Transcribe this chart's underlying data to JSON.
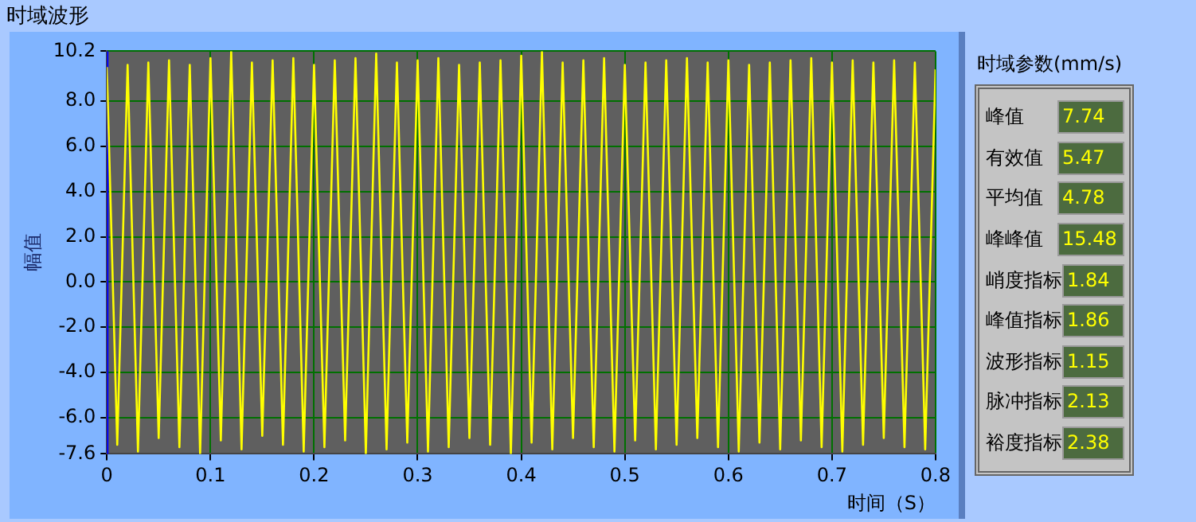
{
  "chart_data": [
    {
      "type": "line",
      "title": "时域波形",
      "xlabel": "时间（S）",
      "ylabel": "幅值",
      "x": [
        0,
        0.01,
        0.02,
        0.03,
        0.04,
        0.05,
        0.06,
        0.07,
        0.08,
        0.09,
        0.1,
        0.11,
        0.12,
        0.13,
        0.14,
        0.15,
        0.16,
        0.17,
        0.18,
        0.19,
        0.2,
        0.21,
        0.22,
        0.23,
        0.24,
        0.25,
        0.26,
        0.27,
        0.28,
        0.29,
        0.3,
        0.31,
        0.32,
        0.33,
        0.34,
        0.35,
        0.36,
        0.37,
        0.38,
        0.39,
        0.4,
        0.41,
        0.42,
        0.43,
        0.44,
        0.45,
        0.46,
        0.47,
        0.48,
        0.49,
        0.5,
        0.51,
        0.52,
        0.53,
        0.54,
        0.55,
        0.56,
        0.57,
        0.58,
        0.59,
        0.6,
        0.61,
        0.62,
        0.63,
        0.64,
        0.65,
        0.66,
        0.67,
        0.68,
        0.69,
        0.7,
        0.71,
        0.72,
        0.73,
        0.74,
        0.75,
        0.76,
        0.77,
        0.78,
        0.79,
        0.8
      ],
      "series": [
        {
          "color": "#ffff00",
          "values": [
            9.5,
            -7.2,
            9.6,
            -7.5,
            9.7,
            -6.9,
            9.8,
            -7.3,
            9.6,
            -7.6,
            9.9,
            -7.0,
            10.2,
            -7.4,
            9.7,
            -6.8,
            9.8,
            -7.2,
            9.9,
            -7.5,
            9.6,
            -7.3,
            9.8,
            -7.0,
            9.9,
            -7.6,
            10.1,
            -7.4,
            9.7,
            -7.1,
            9.8,
            -7.5,
            9.9,
            -7.3,
            9.6,
            -6.9,
            9.7,
            -7.2,
            9.8,
            -7.6,
            10.0,
            -7.1,
            10.2,
            -7.4,
            9.7,
            -6.9,
            9.8,
            -7.3,
            9.9,
            -7.5,
            9.6,
            -7.0,
            9.7,
            -7.4,
            9.8,
            -7.2,
            9.9,
            -6.9,
            9.7,
            -7.3,
            9.8,
            -7.5,
            9.6,
            -7.1,
            9.7,
            -7.4,
            9.8,
            -7.0,
            9.9,
            -7.3,
            9.7,
            -7.5,
            9.8,
            -7.2,
            9.7,
            -6.9,
            9.8,
            -7.3,
            9.7,
            -7.4,
            9.4
          ]
        }
      ],
      "xlim": [
        0,
        0.8
      ],
      "xticks": [
        0,
        0.1,
        0.2,
        0.3,
        0.4,
        0.5,
        0.6,
        0.7,
        0.8
      ],
      "ylim": [
        -7.6,
        10.2
      ],
      "yticks": [
        {
          "value": -7.6,
          "label": "-7.6"
        },
        {
          "value": -6,
          "label": "-6.0"
        },
        {
          "value": -4,
          "label": "-4.0"
        },
        {
          "value": -2,
          "label": "-2.0"
        },
        {
          "value": 0,
          "label": "0.0"
        },
        {
          "value": 2,
          "label": "2.0"
        },
        {
          "value": 4,
          "label": "4.0"
        },
        {
          "value": 6,
          "label": "6.0"
        },
        {
          "value": 8,
          "label": "8.0"
        },
        {
          "value": 10.2,
          "label": "10.2"
        }
      ],
      "grid": true,
      "ref_lines": [
        {
          "axis": "x",
          "value": 0,
          "color": "#0000ff"
        }
      ]
    },
    {
      "type": "other",
      "title": "时域参数(mm/s)",
      "categories": [
        "峰值",
        "有效值",
        "平均值",
        "峰峰值",
        "峭度指标",
        "峰值指标",
        "波形指标",
        "脉冲指标",
        "裕度指标"
      ],
      "values": [
        7.74,
        5.47,
        4.78,
        15.48,
        1.84,
        1.86,
        1.15,
        2.13,
        2.38
      ],
      "data_labels": true
    }
  ]
}
